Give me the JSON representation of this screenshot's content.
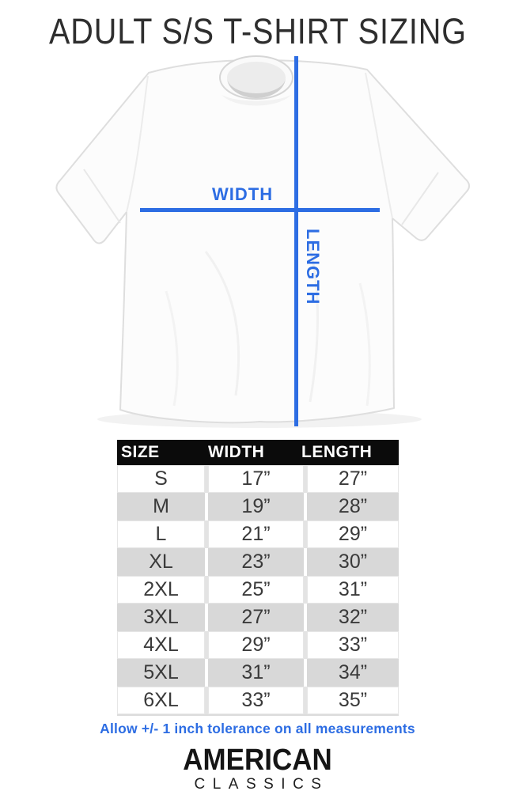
{
  "title": "ADULT S/S T-SHIRT SIZING",
  "diagram": {
    "width_label": "WIDTH",
    "length_label": "LENGTH"
  },
  "chart_data": {
    "type": "table",
    "title": "ADULT S/S T-SHIRT SIZING",
    "columns": [
      "SIZE",
      "WIDTH",
      "LENGTH"
    ],
    "rows": [
      [
        "S",
        "17”",
        "27”"
      ],
      [
        "M",
        "19”",
        "28”"
      ],
      [
        "L",
        "21”",
        "29”"
      ],
      [
        "XL",
        "23”",
        "30”"
      ],
      [
        "2XL",
        "25”",
        "31”"
      ],
      [
        "3XL",
        "27”",
        "32”"
      ],
      [
        "4XL",
        "29”",
        "33”"
      ],
      [
        "5XL",
        "31”",
        "34”"
      ],
      [
        "6XL",
        "33”",
        "35”"
      ]
    ]
  },
  "tolerance_note": "Allow +/- 1 inch tolerance on all measurements",
  "brand": {
    "line1": "AMERICAN",
    "line2": "CLASSICS"
  },
  "colors": {
    "accent_blue": "#2d6de3",
    "header_bg": "#0b0b0b",
    "row_gray": "#d8d8d8",
    "row_gap_gray": "#e3e3e3"
  }
}
